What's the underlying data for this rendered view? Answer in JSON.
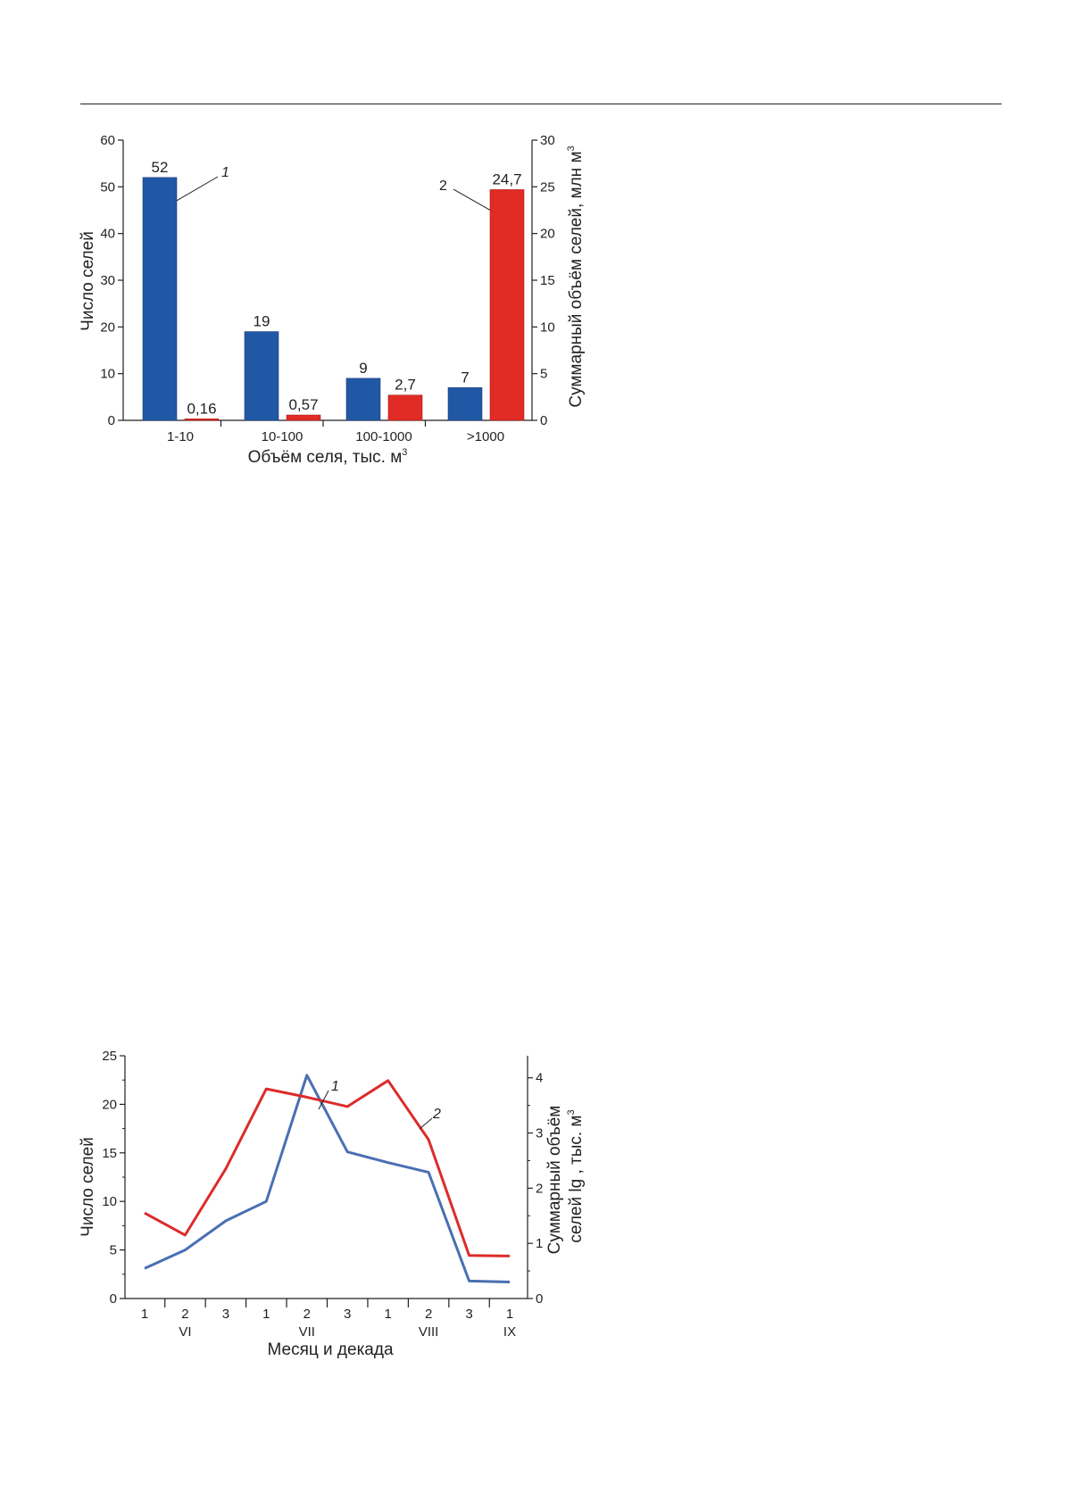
{
  "colors": {
    "series1": "#2158a6",
    "series2": "#e12b25",
    "series1_line": "#4a6fb2",
    "series2_line": "#dd2b2b",
    "axis": "#231f20"
  },
  "chart_data": [
    {
      "type": "bar",
      "categories": [
        "1-10",
        "10-100",
        "100-1000",
        ">1000"
      ],
      "xlabel": "Объём селя, тыс. м",
      "xlabel_sup": "3",
      "ylabel": "Число селей",
      "y2label": "Суммарный объём селей, млн м",
      "y2label_sup": "3",
      "ylim": [
        0,
        60
      ],
      "y2lim": [
        0,
        30
      ],
      "yticks": [
        "0",
        "10",
        "20",
        "30",
        "40",
        "50",
        "60"
      ],
      "y2ticks": [
        "0",
        "5",
        "10",
        "15",
        "20",
        "25",
        "30"
      ],
      "series": [
        {
          "name": "1",
          "axis": "left",
          "color": "#2158a6",
          "values": [
            52,
            19,
            9,
            7
          ],
          "labels": [
            "52",
            "19",
            "9",
            "7"
          ]
        },
        {
          "name": "2",
          "axis": "right",
          "color": "#e12b25",
          "values": [
            0.16,
            0.57,
            2.7,
            24.7
          ],
          "labels": [
            "0,16",
            "0,57",
            "2,7",
            "24,7"
          ]
        }
      ],
      "grid": false
    },
    {
      "type": "line",
      "x": [
        "1",
        "2",
        "3",
        "1",
        "2",
        "3",
        "1",
        "2",
        "3",
        "1"
      ],
      "months": [
        "VI",
        "VII",
        "VIII",
        "IX"
      ],
      "xlabel": "Месяц и декада",
      "ylabel": "Число селей",
      "y2label_line1": "Суммарный объём",
      "y2label_line2": "селей lg , тыс. м",
      "y2label_sup": "3",
      "ylim": [
        0,
        25
      ],
      "y2lim": [
        0,
        4.4
      ],
      "yticks": [
        "0",
        "5",
        "10",
        "15",
        "20",
        "25"
      ],
      "y2ticks": [
        "0",
        "1",
        "2",
        "3",
        "4"
      ],
      "series": [
        {
          "name": "1",
          "axis": "left",
          "color": "#4a6fb2",
          "values": [
            3.1,
            5.0,
            8.0,
            10.0,
            23.0,
            15.1,
            14.0,
            13.0,
            1.8,
            1.7
          ]
        },
        {
          "name": "2",
          "axis": "right",
          "color": "#dd2b2b",
          "values": [
            1.55,
            1.15,
            2.35,
            3.8,
            3.65,
            3.48,
            3.95,
            2.88,
            0.78,
            0.77
          ]
        }
      ],
      "grid": false
    }
  ]
}
